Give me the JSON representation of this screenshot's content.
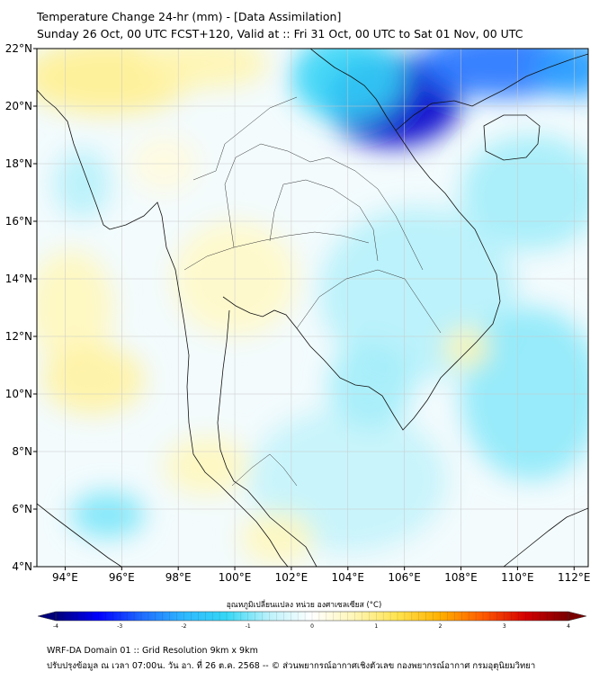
{
  "header": {
    "title": "Temperature Change 24-hr (mm) - [Data Assimilation]",
    "subtitle": "Sunday 26 Oct, 00 UTC FCST+120, Valid at :: Fri 31 Oct, 00 UTC to Sat 01 Nov, 00 UTC"
  },
  "map": {
    "lat_range": [
      4,
      22
    ],
    "lon_range": [
      93,
      112.5
    ],
    "lat_ticks": [
      {
        "value": 22,
        "label": "22°N"
      },
      {
        "value": 20,
        "label": "20°N"
      },
      {
        "value": 18,
        "label": "18°N"
      },
      {
        "value": 16,
        "label": "16°N"
      },
      {
        "value": 14,
        "label": "14°N"
      },
      {
        "value": 12,
        "label": "12°N"
      },
      {
        "value": 10,
        "label": "10°N"
      },
      {
        "value": 8,
        "label": "8°N"
      },
      {
        "value": 6,
        "label": "6°N"
      },
      {
        "value": 4,
        "label": "4°N"
      }
    ],
    "lon_ticks": [
      {
        "value": 94,
        "label": "94°E"
      },
      {
        "value": 96,
        "label": "96°E"
      },
      {
        "value": 98,
        "label": "98°E"
      },
      {
        "value": 100,
        "label": "100°E"
      },
      {
        "value": 102,
        "label": "102°E"
      },
      {
        "value": 104,
        "label": "104°E"
      },
      {
        "value": 106,
        "label": "106°E"
      },
      {
        "value": 108,
        "label": "108°E"
      },
      {
        "value": 110,
        "label": "110°E"
      },
      {
        "value": 112,
        "label": "112°E"
      }
    ],
    "gridlines": true,
    "field_blobs": [
      {
        "lon": 105.6,
        "lat": 20.2,
        "rx": 2.4,
        "ry": 1.6,
        "value": -3.6
      },
      {
        "lon": 109.5,
        "lat": 21.5,
        "rx": 3.0,
        "ry": 1.2,
        "value": -2.6
      },
      {
        "lon": 112.0,
        "lat": 21.3,
        "rx": 1.4,
        "ry": 1.0,
        "value": -2.2
      },
      {
        "lon": 104.0,
        "lat": 21.0,
        "rx": 2.0,
        "ry": 1.5,
        "value": -1.4
      },
      {
        "lon": 110.5,
        "lat": 17.0,
        "rx": 2.5,
        "ry": 2.0,
        "value": -0.8
      },
      {
        "lon": 106.5,
        "lat": 13.5,
        "rx": 3.5,
        "ry": 3.0,
        "value": -0.7
      },
      {
        "lon": 110.5,
        "lat": 10.0,
        "rx": 2.5,
        "ry": 3.0,
        "value": -0.9
      },
      {
        "lon": 104.0,
        "lat": 7.0,
        "rx": 3.5,
        "ry": 2.5,
        "value": -0.6
      },
      {
        "lon": 95.5,
        "lat": 5.8,
        "rx": 1.3,
        "ry": 0.8,
        "value": -1.0
      },
      {
        "lon": 94.6,
        "lat": 17.3,
        "rx": 1.0,
        "ry": 1.2,
        "value": -0.7
      },
      {
        "lon": 104.8,
        "lat": 10.3,
        "rx": 1.5,
        "ry": 1.5,
        "value": -0.8
      },
      {
        "lon": 95.5,
        "lat": 21.0,
        "rx": 3.0,
        "ry": 1.3,
        "value": 0.9
      },
      {
        "lon": 99.0,
        "lat": 21.5,
        "rx": 2.2,
        "ry": 0.9,
        "value": 0.7
      },
      {
        "lon": 94.2,
        "lat": 13.0,
        "rx": 1.5,
        "ry": 2.0,
        "value": 0.6
      },
      {
        "lon": 95.0,
        "lat": 10.5,
        "rx": 1.8,
        "ry": 1.2,
        "value": 0.8
      },
      {
        "lon": 100.0,
        "lat": 14.0,
        "rx": 2.2,
        "ry": 2.0,
        "value": 0.5
      },
      {
        "lon": 108.2,
        "lat": 11.6,
        "rx": 0.8,
        "ry": 0.7,
        "value": 0.7
      },
      {
        "lon": 99.0,
        "lat": 7.5,
        "rx": 1.5,
        "ry": 1.0,
        "value": 0.6
      },
      {
        "lon": 101.5,
        "lat": 5.0,
        "rx": 1.3,
        "ry": 0.9,
        "value": 0.6
      },
      {
        "lon": 97.5,
        "lat": 18.0,
        "rx": 1.2,
        "ry": 1.0,
        "value": 0.3
      }
    ]
  },
  "colorbar": {
    "title": "อุณหภูมิเปลี่ยนแปลง หน่วย องศาเซลเซียส (°C)",
    "range": [
      -4,
      4
    ],
    "ticks": [
      "-4",
      "-3",
      "-2",
      "-1",
      "0",
      "1",
      "2",
      "3",
      "4"
    ],
    "stops": [
      "#00007a",
      "#0000ff",
      "#1f6bff",
      "#2fb8ff",
      "#35d7f5",
      "#bdf2fb",
      "#ffffff",
      "#fff6b5",
      "#ffe34f",
      "#ffb000",
      "#ff5a00",
      "#d40000",
      "#7a0000"
    ]
  },
  "footer": {
    "line1": "WRF-DA Domain 01 :: Grid Resolution 9km x 9km",
    "line2": "ปรับปรุงข้อมูล ณ เวลา 07:00น. วัน อา. ที่ 26 ต.ค. 2568 -- © ส่วนพยากรณ์อากาศเชิงตัวเลข กองพยากรณ์อากาศ กรมอุตุนิยมวิทยา"
  }
}
